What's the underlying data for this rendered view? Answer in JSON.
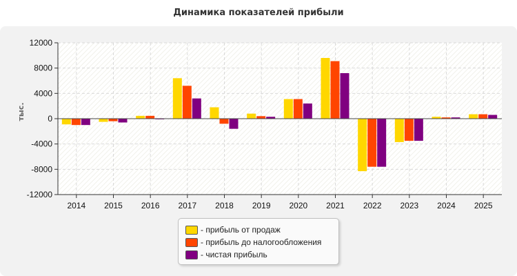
{
  "page": {
    "title": "Динамика показателей прибыли"
  },
  "chart_data": {
    "type": "bar",
    "title": "Динамика показателей прибыли",
    "xlabel": "",
    "ylabel": "тыс.",
    "ylim": [
      -12000,
      12000
    ],
    "yticks": [
      12000,
      8000,
      4000,
      0,
      -4000,
      -8000,
      -12000
    ],
    "grid": true,
    "legend_position": "bottom",
    "categories": [
      "2014",
      "2015",
      "2016",
      "2017",
      "2018",
      "2019",
      "2020",
      "2021",
      "2022",
      "2023",
      "2024",
      "2025"
    ],
    "series": [
      {
        "name": "- прибыль от продаж",
        "color": "#FFD700",
        "values": [
          -900,
          -500,
          450,
          6400,
          1800,
          800,
          3100,
          9600,
          -8300,
          -3700,
          300,
          700
        ]
      },
      {
        "name": "- прибыль до налогообложения",
        "color": "#FF4500",
        "values": [
          -1000,
          -400,
          450,
          5200,
          -800,
          400,
          3100,
          9100,
          -7600,
          -3500,
          200,
          700
        ]
      },
      {
        "name": "- чистая прибыль",
        "color": "#800080",
        "values": [
          -1000,
          -600,
          -100,
          3200,
          -1600,
          300,
          2400,
          7200,
          -7600,
          -3500,
          200,
          600
        ]
      }
    ]
  }
}
